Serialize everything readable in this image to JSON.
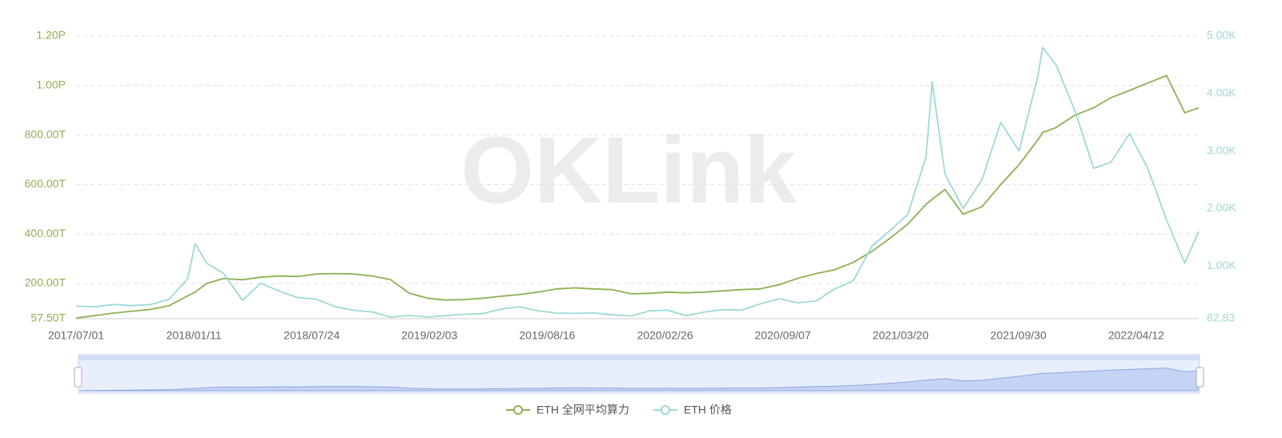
{
  "chart_data": {
    "type": "line",
    "watermark": "OKLink",
    "x": [
      "2017/07/01",
      "2017/08/01",
      "2017/09/01",
      "2017/10/01",
      "2017/11/01",
      "2017/12/01",
      "2018/01/01",
      "2018/01/13",
      "2018/02/01",
      "2018/03/01",
      "2018/04/01",
      "2018/05/01",
      "2018/06/01",
      "2018/07/01",
      "2018/08/01",
      "2018/09/01",
      "2018/10/01",
      "2018/11/01",
      "2018/12/01",
      "2019/01/01",
      "2019/02/01",
      "2019/03/01",
      "2019/04/01",
      "2019/05/01",
      "2019/06/01",
      "2019/07/01",
      "2019/08/01",
      "2019/09/01",
      "2019/10/01",
      "2019/11/01",
      "2019/12/01",
      "2020/01/01",
      "2020/02/01",
      "2020/03/01",
      "2020/04/01",
      "2020/05/01",
      "2020/06/01",
      "2020/07/01",
      "2020/08/01",
      "2020/09/01",
      "2020/10/01",
      "2020/11/01",
      "2020/12/01",
      "2021/01/01",
      "2021/02/01",
      "2021/03/01",
      "2021/04/01",
      "2021/05/01",
      "2021/05/11",
      "2021/06/01",
      "2021/07/01",
      "2021/08/01",
      "2021/09/01",
      "2021/10/01",
      "2021/11/01",
      "2021/11/09",
      "2021/12/01",
      "2022/01/01",
      "2022/02/01",
      "2022/03/01",
      "2022/04/01",
      "2022/05/01",
      "2022/06/01",
      "2022/07/01",
      "2022/07/24"
    ],
    "xlim": [
      "2017/07/01",
      "2022/07/24"
    ],
    "xticks": [
      "2017/07/01",
      "2018/01/11",
      "2018/07/24",
      "2019/02/03",
      "2019/08/16",
      "2020/02/26",
      "2020/09/07",
      "2021/03/20",
      "2021/09/30",
      "2022/04/12"
    ],
    "series": [
      {
        "name": "ETH 全网平均算力",
        "color": "#8bb153",
        "axis": "y",
        "values": [
          60,
          70,
          80,
          88,
          95,
          110,
          150,
          165,
          200,
          220,
          215,
          225,
          230,
          228,
          238,
          240,
          238,
          230,
          215,
          160,
          140,
          133,
          135,
          140,
          148,
          155,
          165,
          178,
          182,
          178,
          175,
          158,
          160,
          165,
          162,
          165,
          170,
          175,
          178,
          195,
          220,
          240,
          255,
          285,
          330,
          380,
          440,
          520,
          540,
          580,
          480,
          510,
          600,
          680,
          780,
          810,
          830,
          880,
          910,
          950,
          980,
          1010,
          1040,
          890,
          910
        ]
      },
      {
        "name": "ETH 价格",
        "color": "#9dd9d6",
        "axis": "y2",
        "values": [
          300,
          290,
          330,
          310,
          330,
          420,
          780,
          1390,
          1050,
          870,
          400,
          700,
          560,
          450,
          420,
          290,
          230,
          200,
          110,
          140,
          110,
          135,
          160,
          170,
          250,
          290,
          220,
          180,
          175,
          185,
          150,
          130,
          220,
          230,
          135,
          200,
          240,
          230,
          340,
          430,
          360,
          390,
          600,
          740,
          1350,
          1600,
          1900,
          2900,
          4200,
          2600,
          2000,
          2500,
          3500,
          3000,
          4300,
          4800,
          4500,
          3700,
          2700,
          2800,
          3300,
          2700,
          1800,
          1050,
          1600
        ]
      }
    ],
    "ylim": [
      57.5,
      1200
    ],
    "yticks": [
      {
        "value": 57.5,
        "label": "57.50T"
      },
      {
        "value": 200,
        "label": "200.00T"
      },
      {
        "value": 400,
        "label": "400.00T"
      },
      {
        "value": 600,
        "label": "600.00T"
      },
      {
        "value": 800,
        "label": "800.00T"
      },
      {
        "value": 1000,
        "label": "1.00P"
      },
      {
        "value": 1200,
        "label": "1.20P"
      }
    ],
    "y2lim": [
      82.83,
      5000
    ],
    "y2ticks": [
      82.83,
      {
        "value": 1000,
        "label": "1.00K"
      },
      {
        "value": 2000,
        "label": "2.00K"
      },
      {
        "value": 3000,
        "label": "3.00K"
      },
      {
        "value": 4000,
        "label": "4.00K"
      },
      {
        "value": 5000,
        "label": "5.00K"
      }
    ],
    "grid": true
  }
}
